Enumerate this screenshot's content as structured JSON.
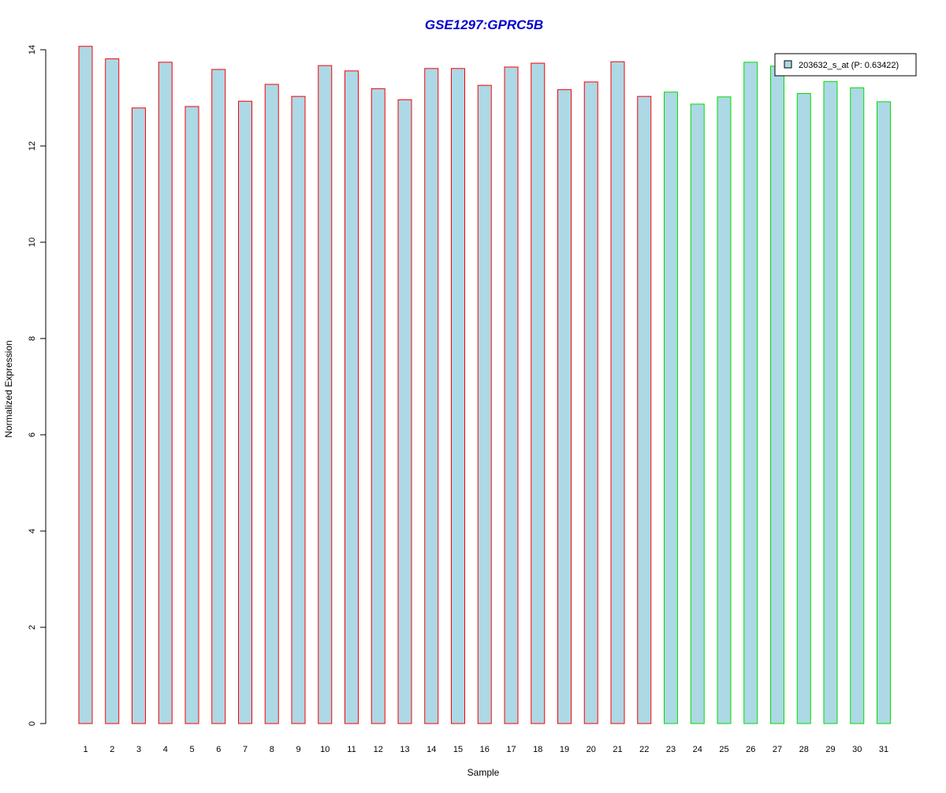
{
  "chart_data": {
    "type": "bar",
    "title": "GSE1297:GPRC5B",
    "xlabel": "Sample",
    "ylabel": "Normalized Expression",
    "ylim": [
      0,
      14
    ],
    "yticks": [
      0,
      2,
      4,
      6,
      8,
      10,
      12,
      14
    ],
    "grid": false,
    "legend_position": "top-right",
    "categories": [
      "1",
      "2",
      "3",
      "4",
      "5",
      "6",
      "7",
      "8",
      "9",
      "10",
      "11",
      "12",
      "13",
      "14",
      "15",
      "16",
      "17",
      "18",
      "19",
      "20",
      "21",
      "22",
      "23",
      "24",
      "25",
      "26",
      "27",
      "28",
      "29",
      "30",
      "31"
    ],
    "series": [
      {
        "name": "203632_s_at (P: 0.63422)",
        "values": [
          14.07,
          13.81,
          12.79,
          13.74,
          12.82,
          13.59,
          12.93,
          13.28,
          13.03,
          13.67,
          13.56,
          13.19,
          12.96,
          13.61,
          13.61,
          13.26,
          13.64,
          13.72,
          13.17,
          13.33,
          13.75,
          13.03,
          13.12,
          12.87,
          13.02,
          13.74,
          13.66,
          13.09,
          13.34,
          13.21,
          12.92
        ]
      }
    ],
    "group_of_bar": [
      "a",
      "a",
      "a",
      "a",
      "a",
      "a",
      "a",
      "a",
      "a",
      "a",
      "a",
      "a",
      "a",
      "a",
      "a",
      "a",
      "a",
      "a",
      "a",
      "a",
      "a",
      "a",
      "b",
      "b",
      "b",
      "b",
      "b",
      "b",
      "b",
      "b",
      "b"
    ]
  },
  "colors": {
    "title": "#0000CC",
    "bar_fill": "#ADD8E6",
    "group_a_border": "#FF0000",
    "group_b_border": "#00DD00",
    "axis": "#000000",
    "legend_border": "#000000"
  }
}
